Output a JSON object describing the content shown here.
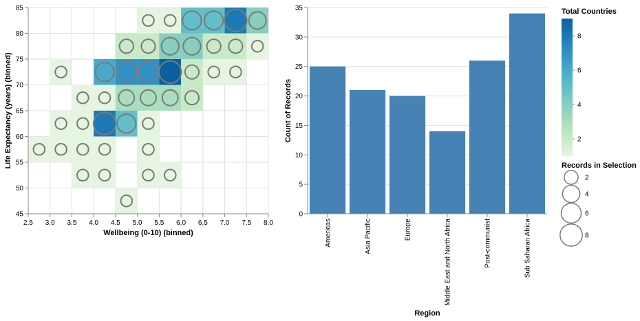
{
  "colors": {
    "bar": "#4682b4",
    "grid": "#e0e0e0",
    "axis": "#888888",
    "circle_stroke": "#7a7a7a",
    "scale": [
      "#e6f5e1",
      "#bfe6bf",
      "#93d3bc",
      "#62bfc9",
      "#3ea1cb",
      "#2381bd",
      "#0c5f9f"
    ]
  },
  "legends": {
    "color_title": "Total Countries",
    "color_ticks": [
      "8",
      "6",
      "4",
      "2"
    ],
    "size_title": "Records in Selection",
    "size_items": [
      "2",
      "4",
      "6",
      "8"
    ]
  },
  "chart_data": [
    {
      "type": "heatmap",
      "xlabel": "Wellbeing (0-10) (binned)",
      "ylabel": "Life Expectancy (years) (binned)",
      "xlim": [
        2.5,
        8.0
      ],
      "ylim": [
        45,
        85
      ],
      "x_ticks": [
        "2.5",
        "3.0",
        "3.5",
        "4.0",
        "4.5",
        "5.0",
        "5.5",
        "6.0",
        "6.5",
        "7.0",
        "7.5",
        "8.0"
      ],
      "y_ticks": [
        "45",
        "50",
        "55",
        "60",
        "65",
        "70",
        "75",
        "80",
        "85"
      ],
      "cells": [
        {
          "x": 4.75,
          "y": 47.5,
          "count": 1,
          "selected": 1
        },
        {
          "x": 3.75,
          "y": 52.5,
          "count": 1,
          "selected": 1
        },
        {
          "x": 4.25,
          "y": 52.5,
          "count": 1,
          "selected": 1
        },
        {
          "x": 5.25,
          "y": 52.5,
          "count": 1,
          "selected": 1
        },
        {
          "x": 5.75,
          "y": 52.5,
          "count": 1,
          "selected": 1
        },
        {
          "x": 2.75,
          "y": 57.5,
          "count": 1,
          "selected": 1
        },
        {
          "x": 3.25,
          "y": 57.5,
          "count": 1,
          "selected": 1
        },
        {
          "x": 3.75,
          "y": 57.5,
          "count": 1,
          "selected": 1
        },
        {
          "x": 4.25,
          "y": 57.5,
          "count": 1,
          "selected": 1
        },
        {
          "x": 5.25,
          "y": 57.5,
          "count": 1,
          "selected": 1
        },
        {
          "x": 3.25,
          "y": 62.5,
          "count": 1,
          "selected": 1
        },
        {
          "x": 3.75,
          "y": 62.5,
          "count": 1,
          "selected": 1
        },
        {
          "x": 4.25,
          "y": 62.5,
          "count": 8,
          "selected": 8
        },
        {
          "x": 4.75,
          "y": 62.5,
          "count": 5,
          "selected": 5
        },
        {
          "x": 5.25,
          "y": 62.5,
          "count": 1,
          "selected": 1
        },
        {
          "x": 3.75,
          "y": 67.5,
          "count": 1,
          "selected": 1
        },
        {
          "x": 4.25,
          "y": 67.5,
          "count": 1,
          "selected": 1
        },
        {
          "x": 4.75,
          "y": 67.5,
          "count": 3,
          "selected": 3
        },
        {
          "x": 5.25,
          "y": 67.5,
          "count": 3,
          "selected": 3
        },
        {
          "x": 5.75,
          "y": 67.5,
          "count": 3,
          "selected": 3
        },
        {
          "x": 6.25,
          "y": 67.5,
          "count": 2,
          "selected": 2
        },
        {
          "x": 3.25,
          "y": 72.5,
          "count": 1,
          "selected": 1
        },
        {
          "x": 4.25,
          "y": 72.5,
          "count": 6,
          "selected": 5
        },
        {
          "x": 4.75,
          "y": 72.5,
          "count": 7,
          "selected": 6
        },
        {
          "x": 5.25,
          "y": 72.5,
          "count": 7,
          "selected": 6
        },
        {
          "x": 5.75,
          "y": 72.5,
          "count": 9,
          "selected": 8
        },
        {
          "x": 6.25,
          "y": 72.5,
          "count": 2,
          "selected": 2
        },
        {
          "x": 6.75,
          "y": 72.5,
          "count": 1,
          "selected": 1
        },
        {
          "x": 7.25,
          "y": 72.5,
          "count": 1,
          "selected": 1
        },
        {
          "x": 4.75,
          "y": 77.5,
          "count": 2,
          "selected": 2
        },
        {
          "x": 5.25,
          "y": 77.5,
          "count": 2,
          "selected": 2
        },
        {
          "x": 5.75,
          "y": 77.5,
          "count": 4,
          "selected": 4
        },
        {
          "x": 6.25,
          "y": 77.5,
          "count": 4,
          "selected": 4
        },
        {
          "x": 6.75,
          "y": 77.5,
          "count": 2,
          "selected": 2
        },
        {
          "x": 7.25,
          "y": 77.5,
          "count": 2,
          "selected": 2
        },
        {
          "x": 7.75,
          "y": 77.5,
          "count": 1,
          "selected": 1
        },
        {
          "x": 5.25,
          "y": 82.5,
          "count": 1,
          "selected": 1
        },
        {
          "x": 5.75,
          "y": 82.5,
          "count": 1,
          "selected": 1
        },
        {
          "x": 6.25,
          "y": 82.5,
          "count": 5,
          "selected": 5
        },
        {
          "x": 6.75,
          "y": 82.5,
          "count": 5,
          "selected": 5
        },
        {
          "x": 7.25,
          "y": 82.5,
          "count": 8,
          "selected": 8
        },
        {
          "x": 7.75,
          "y": 82.5,
          "count": 4,
          "selected": 4
        }
      ]
    },
    {
      "type": "bar",
      "xlabel": "Region",
      "ylabel": "Count of Records",
      "ylim": [
        0,
        35
      ],
      "y_ticks": [
        "0",
        "5",
        "10",
        "15",
        "20",
        "25",
        "30",
        "35"
      ],
      "categories": [
        "Americas",
        "Asia Pacific",
        "Europe",
        "Middle East and North Africa",
        "Post-communist",
        "Sub Saharan Africa"
      ],
      "values": [
        25,
        21,
        20,
        14,
        26,
        34
      ]
    }
  ]
}
